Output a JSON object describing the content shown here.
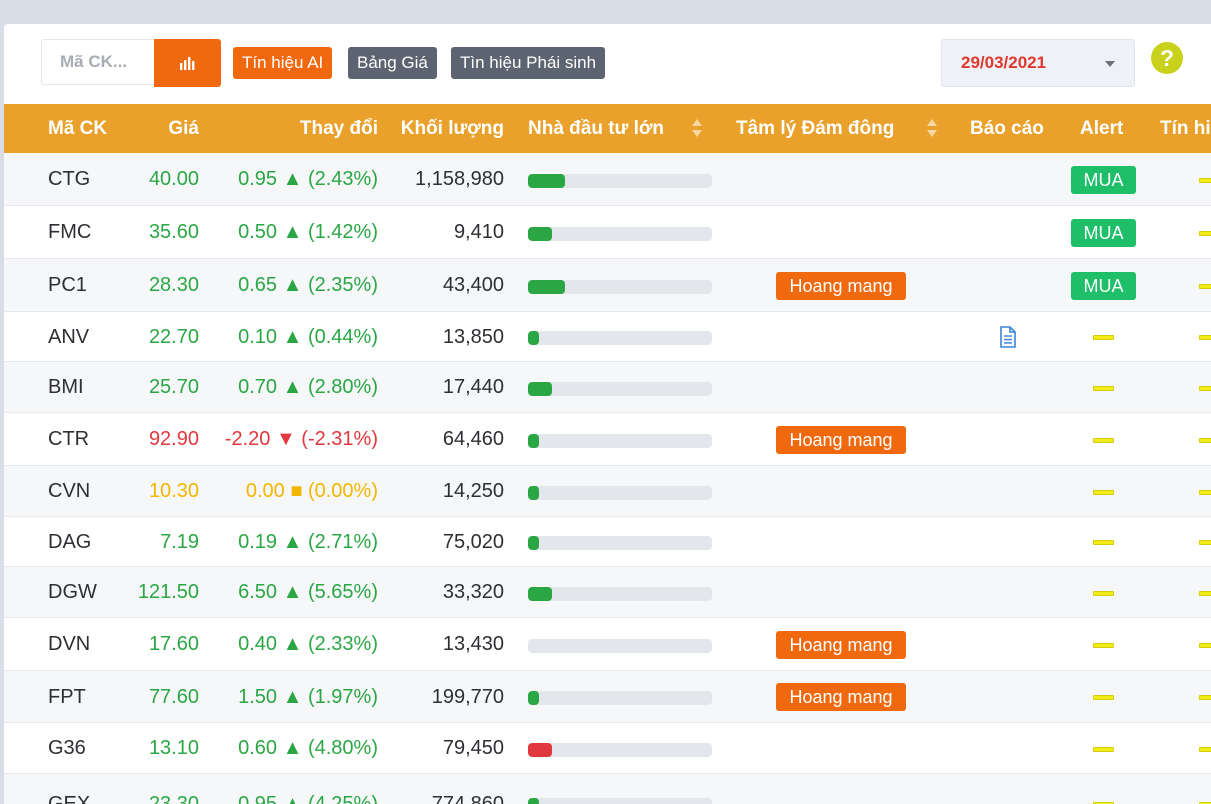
{
  "toolbar": {
    "search_placeholder": "Mã CK...",
    "btn_ai": "Tín hiệu AI",
    "btn_bang_gia": "Bảng Giá",
    "btn_phai_sinh": "Tìn hiệu Phái sinh",
    "date": "29/03/2021",
    "help_symbol": "?"
  },
  "colors": {
    "accent_orange": "#f0690f",
    "header_bg": "#e9a12b",
    "up": "#2aa744",
    "down": "#e0383e",
    "flat": "#f2b600",
    "buy_badge": "#1fbf6a",
    "bar_green": "#2aa744",
    "bar_red": "#e0383e"
  },
  "table": {
    "headers": {
      "code": "Mã CK",
      "price": "Giá",
      "change": "Thay đổi",
      "volume": "Khối lượng",
      "big_investor": "Nhà đầu tư lớn",
      "crowd": "Tâm lý Đám đông",
      "report": "Báo cáo",
      "alert": "Alert",
      "signal": "Tín hi"
    },
    "rows": [
      {
        "code": "CTG",
        "price": "40.00",
        "change": "0.95 ▲ (2.43%)",
        "volume": "1,158,980",
        "dir": "up",
        "bar": 0.2,
        "bar_color": "green",
        "sentiment": "",
        "report": false,
        "alert": "MUA"
      },
      {
        "code": "FMC",
        "price": "35.60",
        "change": "0.50 ▲ (1.42%)",
        "volume": "9,410",
        "dir": "up",
        "bar": 0.13,
        "bar_color": "green",
        "sentiment": "",
        "report": false,
        "alert": "MUA"
      },
      {
        "code": "PC1",
        "price": "28.30",
        "change": "0.65 ▲ (2.35%)",
        "volume": "43,400",
        "dir": "up",
        "bar": 0.2,
        "bar_color": "green",
        "sentiment": "Hoang mang",
        "report": false,
        "alert": "MUA"
      },
      {
        "code": "ANV",
        "price": "22.70",
        "change": "0.10 ▲ (0.44%)",
        "volume": "13,850",
        "dir": "up",
        "bar": 0.06,
        "bar_color": "green",
        "sentiment": "",
        "report": true,
        "alert": ""
      },
      {
        "code": "BMI",
        "price": "25.70",
        "change": "0.70 ▲ (2.80%)",
        "volume": "17,440",
        "dir": "up",
        "bar": 0.13,
        "bar_color": "green",
        "sentiment": "",
        "report": false,
        "alert": ""
      },
      {
        "code": "CTR",
        "price": "92.90",
        "change": "-2.20 ▼ (-2.31%)",
        "volume": "64,460",
        "dir": "down",
        "bar": 0.06,
        "bar_color": "green",
        "sentiment": "Hoang mang",
        "report": false,
        "alert": ""
      },
      {
        "code": "CVN",
        "price": "10.30",
        "change": "0.00 ■ (0.00%)",
        "volume": "14,250",
        "dir": "flat",
        "bar": 0.06,
        "bar_color": "green",
        "sentiment": "",
        "report": false,
        "alert": ""
      },
      {
        "code": "DAG",
        "price": "7.19",
        "change": "0.19 ▲ (2.71%)",
        "volume": "75,020",
        "dir": "up",
        "bar": 0.06,
        "bar_color": "green",
        "sentiment": "",
        "report": false,
        "alert": ""
      },
      {
        "code": "DGW",
        "price": "121.50",
        "change": "6.50 ▲ (5.65%)",
        "volume": "33,320",
        "dir": "up",
        "bar": 0.13,
        "bar_color": "green",
        "sentiment": "",
        "report": false,
        "alert": ""
      },
      {
        "code": "DVN",
        "price": "17.60",
        "change": "0.40 ▲ (2.33%)",
        "volume": "13,430",
        "dir": "up",
        "bar": 0,
        "bar_color": "green",
        "sentiment": "Hoang mang",
        "report": false,
        "alert": ""
      },
      {
        "code": "FPT",
        "price": "77.60",
        "change": "1.50 ▲ (1.97%)",
        "volume": "199,770",
        "dir": "up",
        "bar": 0.06,
        "bar_color": "green",
        "sentiment": "Hoang mang",
        "report": false,
        "alert": ""
      },
      {
        "code": "G36",
        "price": "13.10",
        "change": "0.60 ▲ (4.80%)",
        "volume": "79,450",
        "dir": "up",
        "bar": 0.13,
        "bar_color": "red",
        "sentiment": "",
        "report": false,
        "alert": ""
      },
      {
        "code": "GEX",
        "price": "23.30",
        "change": "0.95 ▲ (4.25%)",
        "volume": "774,860",
        "dir": "up",
        "bar": 0.06,
        "bar_color": "green",
        "sentiment": "",
        "report": false,
        "alert": ""
      }
    ]
  }
}
